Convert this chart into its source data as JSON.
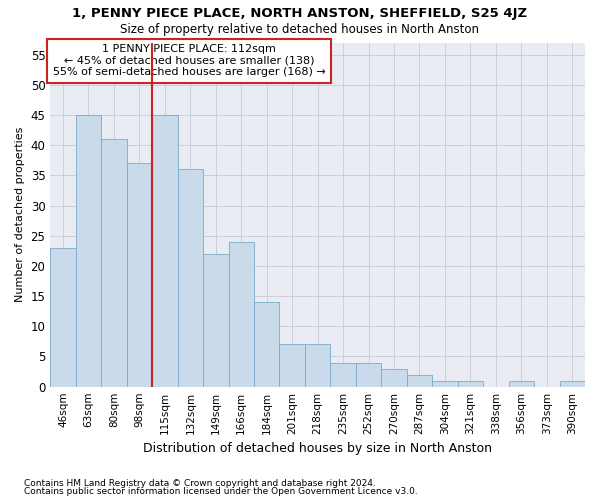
{
  "title": "1, PENNY PIECE PLACE, NORTH ANSTON, SHEFFIELD, S25 4JZ",
  "subtitle": "Size of property relative to detached houses in North Anston",
  "xlabel": "Distribution of detached houses by size in North Anston",
  "ylabel": "Number of detached properties",
  "footnote1": "Contains HM Land Registry data © Crown copyright and database right 2024.",
  "footnote2": "Contains public sector information licensed under the Open Government Licence v3.0.",
  "categories": [
    "46sqm",
    "63sqm",
    "80sqm",
    "98sqm",
    "115sqm",
    "132sqm",
    "149sqm",
    "166sqm",
    "184sqm",
    "201sqm",
    "218sqm",
    "235sqm",
    "252sqm",
    "270sqm",
    "287sqm",
    "304sqm",
    "321sqm",
    "338sqm",
    "356sqm",
    "373sqm",
    "390sqm"
  ],
  "values": [
    23,
    45,
    41,
    37,
    45,
    36,
    22,
    24,
    14,
    7,
    7,
    4,
    4,
    3,
    2,
    1,
    1,
    0,
    1,
    0,
    1
  ],
  "bar_color": "#c9daea",
  "bar_edge_color": "#7aaac8",
  "grid_color": "#c8c8d8",
  "background_color": "#eaecf4",
  "vline_x": 3.5,
  "vline_color": "#cc2222",
  "annotation_line1": "1 PENNY PIECE PLACE: 112sqm",
  "annotation_line2": "← 45% of detached houses are smaller (138)",
  "annotation_line3": "55% of semi-detached houses are larger (168) →",
  "annotation_box_color": "#ffffff",
  "annotation_box_edge": "#cc2222",
  "ylim": [
    0,
    57
  ],
  "yticks": [
    0,
    5,
    10,
    15,
    20,
    25,
    30,
    35,
    40,
    45,
    50,
    55
  ]
}
